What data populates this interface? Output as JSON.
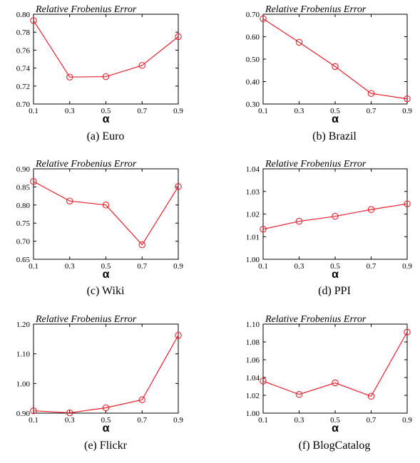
{
  "figure": {
    "panels": [
      {
        "caption": "(a) Euro"
      },
      {
        "caption": "(b) Brazil"
      },
      {
        "caption": "(c) Wiki"
      },
      {
        "caption": "(d) PPI"
      },
      {
        "caption": "(e) Flickr"
      },
      {
        "caption": "(f) BlogCatalog"
      }
    ]
  },
  "chart_data": [
    {
      "type": "line",
      "ylabel": "Relative Frobenius Error",
      "xlabel": "α",
      "x": [
        0.1,
        0.3,
        0.5,
        0.7,
        0.9
      ],
      "xticks": [
        "0.1",
        "0.3",
        "0.5",
        "0.7",
        "0.9"
      ],
      "ylim": [
        0.7,
        0.8
      ],
      "yticks": [
        "0.70",
        "0.72",
        "0.74",
        "0.76",
        "0.78",
        "0.80"
      ],
      "series": [
        {
          "values": [
            0.793,
            0.73,
            0.7305,
            0.743,
            0.775
          ],
          "color": "#e8202a",
          "marker": "circle"
        }
      ]
    },
    {
      "type": "line",
      "ylabel": "Relative Frobenius Error",
      "xlabel": "α",
      "x": [
        0.1,
        0.3,
        0.5,
        0.7,
        0.9
      ],
      "xticks": [
        "0.1",
        "0.3",
        "0.5",
        "0.7",
        "0.9"
      ],
      "ylim": [
        0.3,
        0.7
      ],
      "yticks": [
        "0.30",
        "0.40",
        "0.50",
        "0.60",
        "0.70"
      ],
      "series": [
        {
          "values": [
            0.68,
            0.575,
            0.467,
            0.347,
            0.323
          ],
          "color": "#e8202a",
          "marker": "circle"
        }
      ]
    },
    {
      "type": "line",
      "ylabel": "Relative Frobenius Error",
      "xlabel": "α",
      "x": [
        0.1,
        0.3,
        0.5,
        0.7,
        0.9
      ],
      "xticks": [
        "0.1",
        "0.3",
        "0.5",
        "0.7",
        "0.9"
      ],
      "ylim": [
        0.65,
        0.9
      ],
      "yticks": [
        "0.65",
        "0.70",
        "0.75",
        "0.80",
        "0.85",
        "0.90"
      ],
      "series": [
        {
          "values": [
            0.865,
            0.811,
            0.8,
            0.69,
            0.851
          ],
          "color": "#e8202a",
          "marker": "circle"
        }
      ]
    },
    {
      "type": "line",
      "ylabel": "Relative Frobenius Error",
      "xlabel": "α",
      "x": [
        0.1,
        0.3,
        0.5,
        0.7,
        0.9
      ],
      "xticks": [
        "0.1",
        "0.3",
        "0.5",
        "0.7",
        "0.9"
      ],
      "ylim": [
        1.0,
        1.04
      ],
      "yticks": [
        "1.00",
        "1.01",
        "1.02",
        "1.03",
        "1.04"
      ],
      "series": [
        {
          "values": [
            1.0133,
            1.0168,
            1.019,
            1.022,
            1.0245
          ],
          "color": "#e8202a",
          "marker": "circle"
        }
      ]
    },
    {
      "type": "line",
      "ylabel": "Relative Frobenius Error",
      "xlabel": "α",
      "x": [
        0.1,
        0.3,
        0.5,
        0.7,
        0.9
      ],
      "xticks": [
        "0.1",
        "0.3",
        "0.5",
        "0.7",
        "0.9"
      ],
      "ylim": [
        0.9,
        1.2
      ],
      "yticks": [
        "0.90",
        "1.00",
        "1.10",
        "1.20"
      ],
      "series": [
        {
          "values": [
            0.908,
            0.901,
            0.918,
            0.945,
            1.162
          ],
          "color": "#e8202a",
          "marker": "circle"
        }
      ]
    },
    {
      "type": "line",
      "ylabel": "Relative Frobenius Error",
      "xlabel": "α",
      "x": [
        0.1,
        0.3,
        0.5,
        0.7,
        0.9
      ],
      "xticks": [
        "0.1",
        "0.3",
        "0.5",
        "0.7",
        "0.9"
      ],
      "ylim": [
        1.0,
        1.1
      ],
      "yticks": [
        "1.00",
        "1.02",
        "1.04",
        "1.06",
        "1.08",
        "1.10"
      ],
      "series": [
        {
          "values": [
            1.036,
            1.021,
            1.034,
            1.019,
            1.091
          ],
          "color": "#e8202a",
          "marker": "circle"
        }
      ]
    }
  ]
}
